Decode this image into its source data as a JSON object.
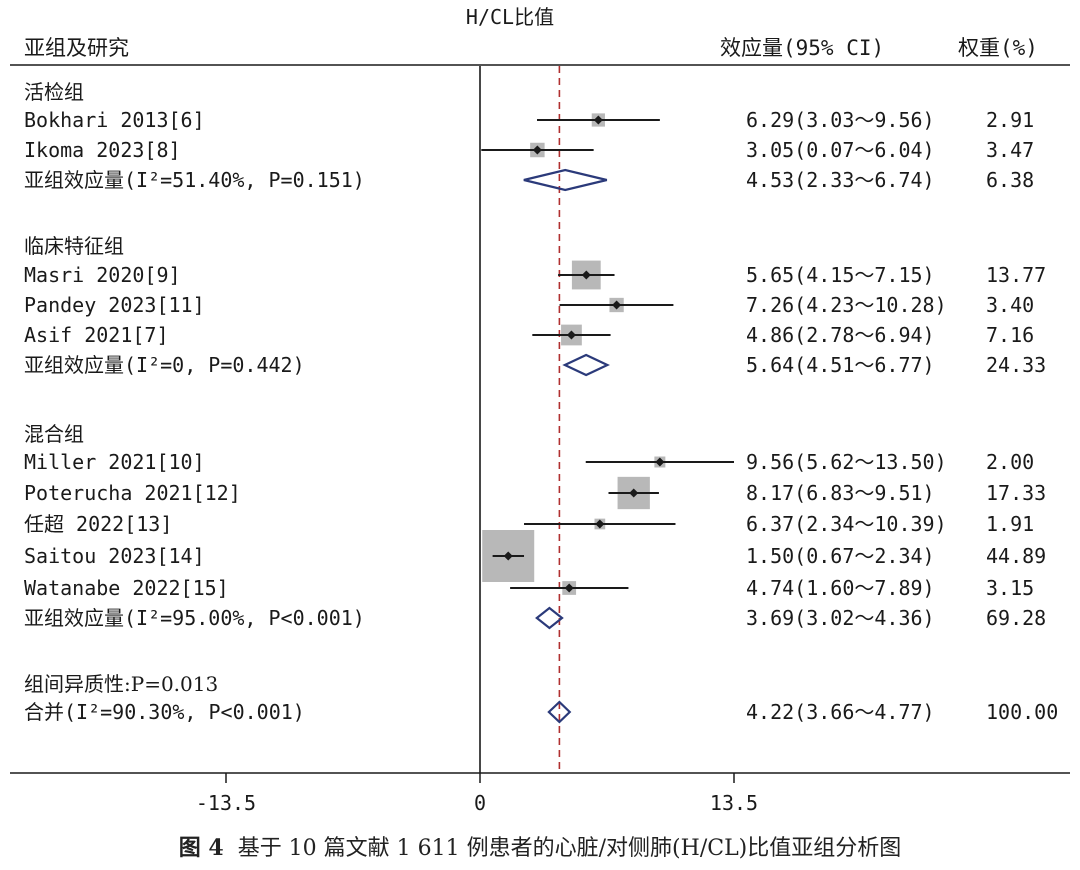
{
  "chart_data": {
    "type": "forest",
    "xlabel": "H/CL比值",
    "column_headers": {
      "study": "亚组及研究",
      "effect": "效应量(95% CI)",
      "weight": "权重(%)"
    },
    "x_ticks": [
      -13.5,
      0,
      13.5
    ],
    "x_tick_labels": [
      "-13.5",
      "0",
      "13.5"
    ],
    "xlim": [
      -13.5,
      22.5
    ],
    "reference_line": 4.22,
    "rows": [
      {
        "kind": "group",
        "label": "活检组"
      },
      {
        "kind": "study",
        "label": "Bokhari 2013[6]",
        "est": 6.29,
        "lo": 3.03,
        "hi": 9.56,
        "weight": 2.91,
        "effect_text": "6.29(3.03～9.56)",
        "weight_text": "2.91"
      },
      {
        "kind": "study",
        "label": "Ikoma 2023[8]",
        "est": 3.05,
        "lo": 0.07,
        "hi": 6.04,
        "weight": 3.47,
        "effect_text": "3.05(0.07～6.04)",
        "weight_text": "3.47"
      },
      {
        "kind": "summary",
        "label": "亚组效应量(I²=51.40%, P=0.151)",
        "est": 4.53,
        "lo": 2.33,
        "hi": 6.74,
        "weight": 6.38,
        "effect_text": "4.53(2.33～6.74)",
        "weight_text": "6.38"
      },
      {
        "kind": "group",
        "label": "临床特征组"
      },
      {
        "kind": "study",
        "label": "Masri 2020[9]",
        "est": 5.65,
        "lo": 4.15,
        "hi": 7.15,
        "weight": 13.77,
        "effect_text": "5.65(4.15～7.15)",
        "weight_text": "13.77"
      },
      {
        "kind": "study",
        "label": "Pandey 2023[11]",
        "est": 7.26,
        "lo": 4.23,
        "hi": 10.28,
        "weight": 3.4,
        "effect_text": "7.26(4.23～10.28)",
        "weight_text": "3.40"
      },
      {
        "kind": "study",
        "label": "Asif 2021[7]",
        "est": 4.86,
        "lo": 2.78,
        "hi": 6.94,
        "weight": 7.16,
        "effect_text": "4.86(2.78～6.94)",
        "weight_text": "7.16"
      },
      {
        "kind": "summary",
        "label": "亚组效应量(I²=0, P=0.442)",
        "est": 5.64,
        "lo": 4.51,
        "hi": 6.77,
        "weight": 24.33,
        "effect_text": "5.64(4.51～6.77)",
        "weight_text": "24.33"
      },
      {
        "kind": "group",
        "label": "混合组"
      },
      {
        "kind": "study",
        "label": "Miller 2021[10]",
        "est": 9.56,
        "lo": 5.62,
        "hi": 13.5,
        "weight": 2.0,
        "effect_text": "9.56(5.62～13.50)",
        "weight_text": "2.00"
      },
      {
        "kind": "study",
        "label": "Poterucha 2021[12]",
        "est": 8.17,
        "lo": 6.83,
        "hi": 9.51,
        "weight": 17.33,
        "effect_text": "8.17(6.83～9.51)",
        "weight_text": "17.33"
      },
      {
        "kind": "study",
        "label": "任超 2022[13]",
        "est": 6.37,
        "lo": 2.34,
        "hi": 10.39,
        "weight": 1.91,
        "effect_text": "6.37(2.34～10.39)",
        "weight_text": "1.91"
      },
      {
        "kind": "study",
        "label": "Saitou 2023[14]",
        "est": 1.5,
        "lo": 0.67,
        "hi": 2.34,
        "weight": 44.89,
        "effect_text": "1.50(0.67～2.34)",
        "weight_text": "44.89"
      },
      {
        "kind": "study",
        "label": "Watanabe 2022[15]",
        "est": 4.74,
        "lo": 1.6,
        "hi": 7.89,
        "weight": 3.15,
        "effect_text": "4.74(1.60～7.89)",
        "weight_text": "3.15"
      },
      {
        "kind": "summary",
        "label": "亚组效应量(I²=95.00%, P<0.001)",
        "est": 3.69,
        "lo": 3.02,
        "hi": 4.36,
        "weight": 69.28,
        "effect_text": "3.69(3.02～4.36)",
        "weight_text": "69.28"
      },
      {
        "kind": "group",
        "label": "组间异质性:P=0.013"
      },
      {
        "kind": "summary",
        "label": "合并(I²=90.30%, P<0.001)",
        "est": 4.22,
        "lo": 3.66,
        "hi": 4.77,
        "weight": 100.0,
        "effect_text": "4.22(3.66～4.77)",
        "weight_text": "100.00"
      }
    ],
    "colors": {
      "ink": "#1a1a1a",
      "weight_box": "#b8b8b8",
      "diamond": "#2b3a7a",
      "reference_line": "#b03030"
    }
  },
  "caption": {
    "label": "图 4",
    "text": "基于 10 篇文献 1 611 例患者的心脏/对侧肺(H/CL)比值亚组分析图"
  }
}
